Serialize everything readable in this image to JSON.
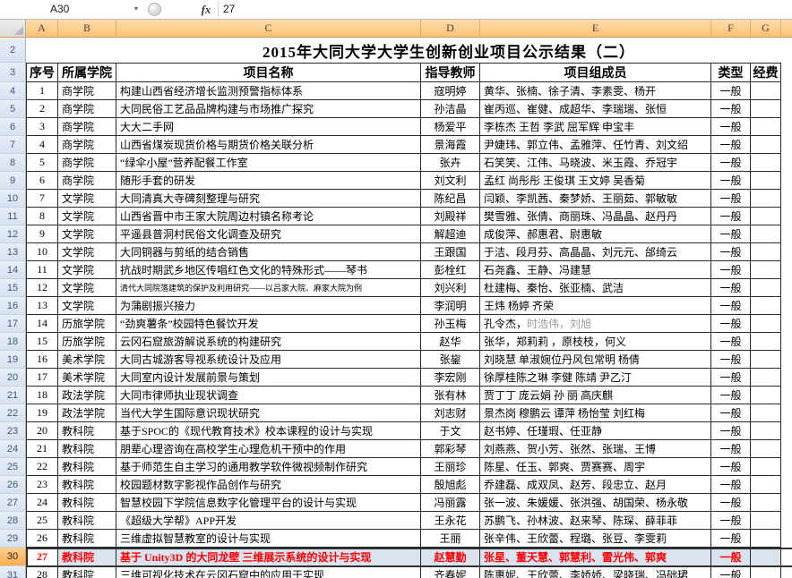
{
  "formula_bar": {
    "name_box": "A30",
    "fx_icon": "fx",
    "dropdown_icon": "▼",
    "formula_value": "27"
  },
  "column_letters": [
    "A",
    "B",
    "C",
    "D",
    "E",
    "F",
    "G"
  ],
  "title": "2015年大同大学大学生创新创业项目公示结果（二）",
  "table_headers": [
    "序号",
    "所属学院",
    "项目名称",
    "指导教师",
    "项目组成员",
    "类型",
    "经费"
  ],
  "colors": {
    "selected_row_text": "#ff0000",
    "selection_fill": "#dce3f0",
    "column_header_selected": "#fbc275",
    "row_header_selected": "#fbab51"
  },
  "first_visible_row_number": 2,
  "rows": [
    {
      "n": 4,
      "seq": "1",
      "college": "商学院",
      "project": "构建山西省经济增长监测预警指标体系",
      "teacher": "寇明婷",
      "members": "黄华、张楠、徐子清、李素雯、杨开",
      "type": "一般",
      "budget": ""
    },
    {
      "n": 5,
      "seq": "2",
      "college": "商学院",
      "project": "大同民俗工艺品品牌构建与市场推广探究",
      "teacher": "孙洁晶",
      "members": "崔丙巡、崔健、成超华、李瑞瑞、张恒",
      "type": "一般",
      "budget": ""
    },
    {
      "n": 6,
      "seq": "3",
      "college": "商学院",
      "project": "大大二手网",
      "teacher": "杨爱平",
      "members": "李栋杰 王哲 李武 屈军辉 申宝丰",
      "type": "一般",
      "budget": ""
    },
    {
      "n": 7,
      "seq": "4",
      "college": "商学院",
      "project": "山西省煤炭现货价格与期货价格关联分析",
      "teacher": "景海霞",
      "members": "尹婕玮、郭立伟、孟雅萍、任竹青、刘文绍",
      "type": "一般",
      "budget": ""
    },
    {
      "n": 8,
      "seq": "5",
      "college": "商学院",
      "project": "“绿伞小屋”营养配餐工作室",
      "teacher": "张卉",
      "members": "石笑笑、江伟、马晓波、米玉霞、乔冠宇",
      "type": "一般",
      "budget": ""
    },
    {
      "n": 9,
      "seq": "6",
      "college": "商学院",
      "project": "随形手套的研发",
      "teacher": "刘文利",
      "members": "孟红 尚彤彤 王俊琪 王文婷 吴香菊",
      "type": "一般",
      "budget": ""
    },
    {
      "n": 10,
      "seq": "7",
      "college": "文学院",
      "project": "大同清真大寺碑刻整理与研究",
      "teacher": "陈纪昌",
      "members": "闫颖、李凯茜、秦梦娇、王丽茹、郭敏敏",
      "type": "一般",
      "budget": ""
    },
    {
      "n": 11,
      "seq": "8",
      "college": "文学院",
      "project": "山西省晋中市王家大院周边村镇名称考论",
      "teacher": "刘殿祥",
      "members": "樊雪雅、张倩、商丽珠、冯晶晶、赵丹丹",
      "type": "一般",
      "budget": ""
    },
    {
      "n": 12,
      "seq": "9",
      "college": "文学院",
      "project": "平遥县普洞村民俗文化调查及研究",
      "teacher": "解超迪",
      "members": "成俊萍、郝惠君、尉惠敏",
      "type": "一般",
      "budget": ""
    },
    {
      "n": 13,
      "seq": "10",
      "college": "文学院",
      "project": "大同铜器与剪纸的结合销售",
      "teacher": "王跟国",
      "members": "于洁、段月芬、高晶晶、刘元元、邰绮云",
      "type": "一般",
      "budget": ""
    },
    {
      "n": 14,
      "seq": "11",
      "college": "文学院",
      "project": "抗战时期武乡地区传唱红色文化的特殊形式——琴书",
      "teacher": "彭栓红",
      "members": "石尧鑫、王静、冯建慧",
      "type": "一般",
      "budget": ""
    },
    {
      "n": 15,
      "seq": "12",
      "college": "文学院",
      "project": "清代大同院落建筑的保护及利用研究——以吕家大院、麻家大院为例",
      "project_small": true,
      "teacher": "刘兴利",
      "members": "杜建梅、秦怡、张亚楠、武洁",
      "type": "一般",
      "budget": ""
    },
    {
      "n": 16,
      "seq": "13",
      "college": "文学院",
      "project": "为蒲剧振兴接力",
      "teacher": "李润明",
      "members": "王炜 杨婷 齐荣",
      "type": "一般",
      "budget": ""
    },
    {
      "n": 17,
      "seq": "14",
      "college": "历旅学院",
      "project": "“劲爽薯条”校园特色餐饮开发",
      "teacher": "孙玉梅",
      "members": "孔令杰，",
      "members_muted": "时浩伟，刘旭",
      "type": "一般",
      "budget": ""
    },
    {
      "n": 18,
      "seq": "15",
      "college": "历旅学院",
      "project": "云冈石窟旅游解说系统的构建研究",
      "teacher": "赵华",
      "members": "张华，郑莉莉 ，原枝枝，何义",
      "type": "一般",
      "budget": ""
    },
    {
      "n": 19,
      "seq": "16",
      "college": "美术学院",
      "project": "大同古城游客导视系统设计及应用",
      "teacher": "张鋆",
      "members": "刘晓慧 单淑婉位丹风包常明 杨倩",
      "type": "一般",
      "budget": ""
    },
    {
      "n": 20,
      "seq": "17",
      "college": "美术学院",
      "project": "大同室内设计发展前景与策划",
      "teacher": "李宏刚",
      "members": "徐厚桂陈之琳 李健 陈靖 尹乙汀",
      "type": "一般",
      "budget": ""
    },
    {
      "n": 21,
      "seq": "18",
      "college": "政法学院",
      "project": "大同市律师执业现状调查",
      "teacher": "张有林",
      "members": "贾丁丁  庞云娟  孙  丽  高庆麒",
      "type": "一般",
      "budget": ""
    },
    {
      "n": 22,
      "seq": "19",
      "college": "政法学院",
      "project": "当代大学生国际意识现状研究",
      "teacher": "刘志财",
      "members": "景杰岗 穆鹏云 谭萍 杨怡莹 刘红梅",
      "type": "一般",
      "budget": ""
    },
    {
      "n": 23,
      "seq": "20",
      "college": "教科院",
      "project": "基于SPOC的《现代教育技术》校本课程的设计与实现",
      "teacher": "于文",
      "members": "赵书婷、任瑾瑕、任亚静",
      "type": "一般",
      "budget": ""
    },
    {
      "n": 24,
      "seq": "21",
      "college": "教科院",
      "project": "朋辈心理咨询在高校学生心理危机干预中的作用",
      "teacher": "郭彩琴",
      "members": "刘燕燕、贺小芳、张然、张瑞、王博",
      "type": "一般",
      "budget": ""
    },
    {
      "n": 25,
      "seq": "22",
      "college": "教科院",
      "project": "基于师范生自主学习的通用教学软件微视频制作研究",
      "teacher": "王丽珍",
      "members": "陈星、任玉、郭爽、贾赛赛、周宇",
      "type": "一般",
      "budget": ""
    },
    {
      "n": 26,
      "seq": "23",
      "college": "教科院",
      "project": "校园题材数字影视作品创作与研究",
      "teacher": "殷旭彪",
      "members": "乔建磊、成双凤、赵芳、段忠立、赵月",
      "type": "一般",
      "budget": ""
    },
    {
      "n": 27,
      "seq": "24",
      "college": "教科院",
      "project": "智慧校园下学院信息数字化管理平台的设计与实现",
      "teacher": "冯丽露",
      "members": "张一波、朱媛媛、张洪强、胡国荣、杨永敬",
      "type": "一般",
      "budget": ""
    },
    {
      "n": 28,
      "seq": "25",
      "college": "教科院",
      "project": "《超级大学帮》APP开发",
      "teacher": "王永花",
      "members": "苏鹏飞、孙林波、赵来琴、陈琛、薛菲菲",
      "type": "一般",
      "budget": ""
    },
    {
      "n": 29,
      "seq": "26",
      "college": "教科院",
      "project": "三维虚拟智慧教室的设计与实现",
      "teacher": "王丽",
      "members": "张辛伟、王欣蕾、程璐、张豆、李雯莉",
      "type": "一般",
      "budget": ""
    },
    {
      "n": 30,
      "seq": "27",
      "college": "教科院",
      "project": "基于 Unity3D 的大同龙壁 三维展示系统的设计与实现",
      "teacher": "赵慧勤",
      "members": "张星、董天慧、郭慧利、雷光伟、郭爽",
      "type": "一般",
      "budget": "",
      "selected": true
    },
    {
      "n": 31,
      "seq": "28",
      "college": "教科院",
      "project": "三维可视化技术在云冈石窟中的应用于实现",
      "teacher": "齐春妮",
      "members": "陈惠妮、王欣蕾、李娇娇、梁晓瑞、冯础珺",
      "type": "一般",
      "budget": "",
      "clipped": true
    }
  ]
}
